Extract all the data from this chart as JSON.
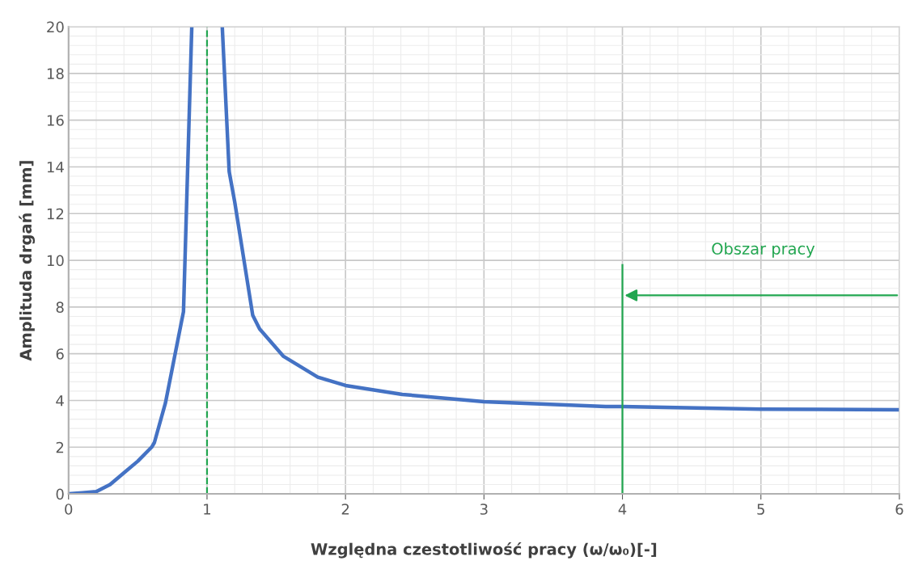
{
  "chart_data": {
    "type": "line",
    "xlabel": "Względna czestotliwość pracy (ω/ω₀)[-]",
    "ylabel": "Amplituda drgań [mm]",
    "x": [
      0,
      0.1,
      0.2,
      0.3,
      0.4,
      0.5,
      0.6,
      0.62,
      0.7,
      0.75,
      0.83,
      0.89,
      1,
      1.11,
      1.16,
      1.2,
      1.33,
      1.38,
      1.55,
      1.8,
      2.0,
      2.41,
      3.0,
      3.88,
      4.0,
      5.0,
      6.0
    ],
    "series": [
      {
        "color": "#4472c4",
        "values": [
          0,
          0.05,
          0.1,
          0.4,
          0.9,
          1.4,
          2.0,
          2.2,
          3.9,
          5.4,
          7.8,
          20,
          null,
          20,
          13.8,
          12.5,
          7.65,
          7.06,
          5.9,
          5.0,
          4.64,
          4.26,
          3.95,
          3.74,
          3.74,
          3.63,
          3.6
        ]
      }
    ],
    "ref_lines": [
      {
        "axis": "x",
        "value": 1,
        "color": "#22a650",
        "line_style": "dashed"
      },
      {
        "axis": "x",
        "value": 4,
        "color": "#22a650",
        "line_style": "solid"
      }
    ],
    "annotations": [
      "Obszar pracy"
    ],
    "xlim": [
      0,
      6
    ],
    "xticks": [
      0,
      1,
      2,
      3,
      4,
      5,
      6
    ],
    "ylim": [
      0,
      20
    ],
    "yticks": [
      0,
      2,
      4,
      6,
      8,
      10,
      12,
      14,
      16,
      18,
      20
    ],
    "grid": true
  }
}
